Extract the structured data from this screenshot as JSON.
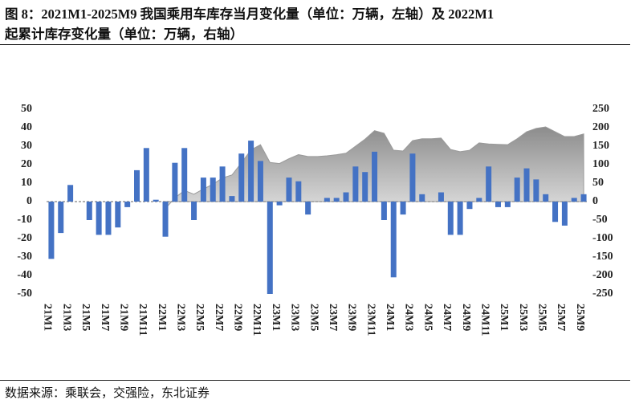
{
  "chart_data": {
    "type": "bar",
    "title": "图 8：2021M1-2025M9 我国乘用车库存当月变化量（单位：万辆，左轴）及 2022M1",
    "subtitle": "起累计库存变化量（单位：万辆，右轴）",
    "source": "数据来源：乘联会，交强险，东北证券",
    "categories": [
      "21M1",
      null,
      "21M3",
      null,
      "21M5",
      null,
      "21M7",
      null,
      "21M9",
      null,
      "21M11",
      null,
      "22M1",
      null,
      "22M3",
      null,
      "22M5",
      null,
      "22M7",
      null,
      "22M9",
      null,
      "22M11",
      null,
      "23M1",
      null,
      "23M3",
      null,
      "23M5",
      null,
      "23M7",
      null,
      "23M9",
      null,
      "23M11",
      null,
      "24M1",
      null,
      "24M3",
      null,
      "24M5",
      null,
      "24M7",
      null,
      "24M9",
      null,
      "24M11",
      null,
      "25M1",
      null,
      "25M3",
      null,
      "25M5",
      null,
      "25M7",
      null,
      "25M9"
    ],
    "series": [
      {
        "type": "area",
        "axis": "y2",
        "color": "#a6a6a6",
        "values": [
          null,
          null,
          null,
          null,
          null,
          null,
          null,
          null,
          null,
          null,
          null,
          null,
          -19,
          10,
          30,
          20,
          34,
          47,
          64,
          72,
          105,
          140,
          154,
          106,
          103,
          116,
          127,
          122,
          122,
          124,
          127,
          131,
          150,
          169,
          192,
          185,
          139,
          137,
          165,
          170,
          170,
          172,
          141,
          135,
          139,
          159,
          156,
          155,
          154,
          170,
          189,
          198,
          202,
          189,
          176,
          176,
          183
        ]
      },
      {
        "type": "bar",
        "color": "#4472c4",
        "values": [
          -31,
          -17,
          9,
          0,
          -10,
          -18,
          -18,
          -14,
          -3,
          17,
          29,
          1,
          -19,
          21,
          29,
          -10,
          13,
          13,
          19,
          3,
          26,
          33,
          22,
          -50,
          -2,
          13,
          11,
          -7,
          0,
          2,
          2,
          5,
          19,
          16,
          27,
          -10,
          -41,
          -7,
          26,
          4,
          0,
          5,
          -18,
          -18,
          -4,
          2,
          19,
          -3,
          -3,
          13,
          18,
          12,
          4,
          -11,
          -13,
          2,
          4
        ]
      }
    ],
    "ylim": [
      -50,
      50
    ],
    "yticks": [
      -50,
      -40,
      -30,
      -20,
      -10,
      0,
      10,
      20,
      30,
      40,
      50
    ],
    "y2lim": [
      -250,
      250
    ],
    "y2ticks": [
      -250,
      -200,
      -150,
      -100,
      -50,
      0,
      50,
      100,
      150,
      200,
      250
    ]
  }
}
